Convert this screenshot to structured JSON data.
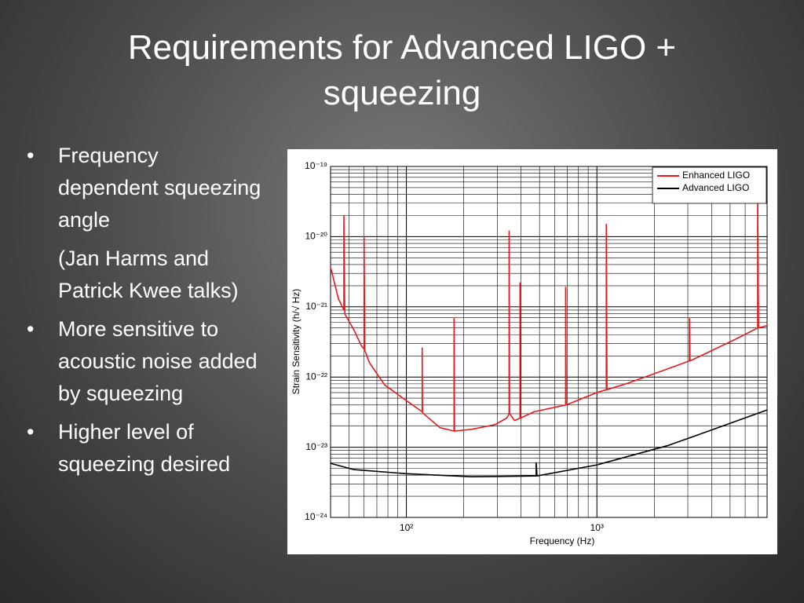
{
  "slide": {
    "title": "Requirements for Advanced LIGO + squeezing",
    "bullets": [
      {
        "text": "Frequency dependent squeezing angle",
        "note": "(Jan Harms and Patrick Kwee talks)"
      },
      {
        "text": "More sensitive to acoustic noise added by squeezing"
      },
      {
        "text": "Higher level of squeezing desired"
      }
    ]
  },
  "chart_data": {
    "type": "line",
    "x_label": "Frequency (Hz)",
    "y_label": "Strain Sensitivity (h/√ Hz)",
    "xlog": true,
    "ylog": true,
    "grid": true,
    "legend": "upper right",
    "xlim": [
      40,
      7820
    ],
    "ylim": [
      1e-24,
      1e-19
    ],
    "xticks": [
      {
        "value": 100,
        "label": "10²"
      },
      {
        "value": 1000,
        "label": "10³"
      }
    ],
    "yticks": [
      {
        "value": 1e-19,
        "label": "10⁻¹⁹"
      },
      {
        "value": 1e-20,
        "label": "10⁻²⁰"
      },
      {
        "value": 1e-21,
        "label": "10⁻²¹"
      },
      {
        "value": 1e-22,
        "label": "10⁻²²"
      },
      {
        "value": 1e-23,
        "label": "10⁻²³"
      },
      {
        "value": 1e-24,
        "label": "10⁻²⁴"
      }
    ],
    "series": [
      {
        "name": "Enhanced LIGO",
        "color": "#e8191c",
        "x": [
          40,
          44,
          47,
          47,
          47.5,
          53,
          58,
          60,
          60,
          60.5,
          64,
          77,
          100,
          121,
          121,
          121.5,
          150,
          178,
          178,
          179,
          220,
          292,
          336,
          346,
          346,
          348,
          370,
          395,
          395,
          397,
          469,
          685,
          685,
          690,
          1000,
          1120,
          1120,
          1130,
          1460,
          2340,
          3060,
          3060,
          3080,
          3770,
          5500,
          6980,
          6980,
          7050,
          7820
        ],
        "values": [
          3.7e-21,
          1.3e-21,
          9e-22,
          2e-20,
          8e-22,
          4.7e-22,
          2.8e-22,
          2.5e-22,
          1e-20,
          2.4e-22,
          1.6e-22,
          7.7e-23,
          4.6e-23,
          3.2e-23,
          2.6e-22,
          3.1e-23,
          1.9e-23,
          1.7e-23,
          6.9e-22,
          1.7e-23,
          1.8e-23,
          2.1e-23,
          2.6e-23,
          3e-23,
          1.2e-20,
          3e-23,
          2.4e-23,
          2.6e-23,
          2.2e-21,
          2.6e-23,
          3.2e-23,
          4e-23,
          1.9e-21,
          4e-23,
          6e-23,
          6.6e-23,
          1.5e-20,
          6.6e-23,
          8.2e-23,
          1.3e-22,
          1.7e-22,
          6.9e-22,
          1.7e-22,
          2.2e-22,
          3.6e-22,
          5e-22,
          3.3e-20,
          5e-22,
          5.4e-22
        ]
      },
      {
        "name": "Advanced LIGO",
        "color": "#000000",
        "x": [
          40,
          53,
          100,
          220,
          480,
          480,
          485,
          1000,
          2340,
          3770,
          7820
        ],
        "values": [
          5.9e-24,
          4.8e-24,
          4.2e-24,
          3.8e-24,
          3.9e-24,
          6e-24,
          3.9e-24,
          5.6e-24,
          1.05e-23,
          1.66e-23,
          3.4e-23
        ]
      }
    ]
  }
}
